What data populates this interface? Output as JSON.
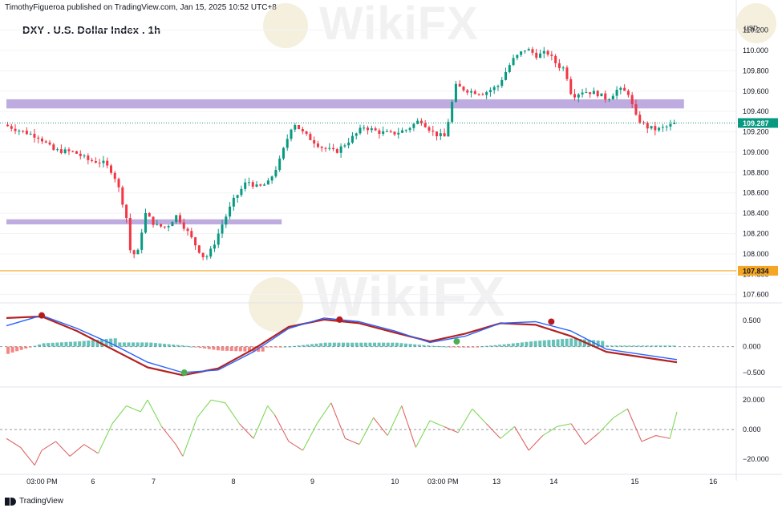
{
  "header": {
    "publisher": "TimothyFigueroa published on TradingView.com, Jan 15, 2025 10:52 UTC+8",
    "title": "DXY . U.S. Dollar Index . 1h"
  },
  "watermark": {
    "text": "WikiFX"
  },
  "footer": {
    "brand": "TradingView"
  },
  "colors": {
    "up": "#089981",
    "down": "#f23645",
    "zone": "#b39ddb",
    "support": "#f5a623",
    "last_price": "#089981",
    "fast_line": "#2962ff",
    "slow_line": "#b22222",
    "signal_up": "#4caf50",
    "signal_down": "#b71c1c",
    "osc_up": "#7ed957",
    "osc_down": "#e06666"
  },
  "chart_data": [
    {
      "type": "candlestick",
      "title": "DXY . U.S. Dollar Index . 1h",
      "currency_label": "USD",
      "yticks": [
        107.6,
        107.8,
        108.0,
        108.2,
        108.4,
        108.6,
        108.8,
        109.0,
        109.2,
        109.4,
        109.6,
        109.8,
        110.0,
        110.2
      ],
      "ytick_labels": [
        "107.600",
        "107.800",
        "108.000",
        "108.200",
        "108.400",
        "108.600",
        "108.800",
        "109.000",
        "109.200",
        "109.400",
        "109.600",
        "109.800",
        "110.000",
        "110.200"
      ],
      "ylim": [
        107.55,
        110.37
      ],
      "last_price": 109.287,
      "last_price_label": "109.287",
      "support_level": 107.834,
      "support_label": "107.834",
      "zones": [
        {
          "low": 109.43,
          "high": 109.52,
          "from": 0,
          "to": 0.96
        },
        {
          "low": 108.29,
          "high": 108.34,
          "from": 0,
          "to": 0.39
        }
      ],
      "xtick_labels": [
        "03:00 PM",
        "6",
        "7",
        "8",
        "9",
        "10",
        "03:00 PM",
        "13",
        "14",
        "15",
        "16"
      ],
      "xtick_positions": [
        0.049,
        0.122,
        0.208,
        0.321,
        0.433,
        0.547,
        0.617,
        0.691,
        0.772,
        0.887,
        0.998
      ],
      "path": [
        [
          0,
          109.27
        ],
        [
          0.02,
          109.22
        ],
        [
          0.05,
          109.15
        ],
        [
          0.07,
          109.02
        ],
        [
          0.1,
          109.0
        ],
        [
          0.12,
          108.92
        ],
        [
          0.14,
          108.9
        ],
        [
          0.155,
          108.8
        ],
        [
          0.165,
          108.6
        ],
        [
          0.175,
          108.32
        ],
        [
          0.18,
          107.98
        ],
        [
          0.19,
          108.02
        ],
        [
          0.2,
          108.4
        ],
        [
          0.215,
          108.28
        ],
        [
          0.23,
          108.26
        ],
        [
          0.245,
          108.38
        ],
        [
          0.26,
          108.22
        ],
        [
          0.275,
          108.05
        ],
        [
          0.285,
          107.95
        ],
        [
          0.295,
          108.05
        ],
        [
          0.31,
          108.3
        ],
        [
          0.325,
          108.52
        ],
        [
          0.345,
          108.72
        ],
        [
          0.36,
          108.65
        ],
        [
          0.375,
          108.7
        ],
        [
          0.39,
          108.9
        ],
        [
          0.41,
          109.3
        ],
        [
          0.425,
          109.18
        ],
        [
          0.45,
          109.05
        ],
        [
          0.47,
          109.0
        ],
        [
          0.49,
          109.12
        ],
        [
          0.51,
          109.25
        ],
        [
          0.53,
          109.2
        ],
        [
          0.55,
          109.18
        ],
        [
          0.57,
          109.22
        ],
        [
          0.59,
          109.32
        ],
        [
          0.61,
          109.18
        ],
        [
          0.625,
          109.15
        ],
        [
          0.64,
          109.65
        ],
        [
          0.66,
          109.6
        ],
        [
          0.68,
          109.58
        ],
        [
          0.7,
          109.65
        ],
        [
          0.72,
          109.9
        ],
        [
          0.74,
          110.02
        ],
        [
          0.755,
          109.95
        ],
        [
          0.77,
          109.98
        ],
        [
          0.785,
          109.85
        ],
        [
          0.795,
          109.82
        ],
        [
          0.805,
          109.55
        ],
        [
          0.82,
          109.6
        ],
        [
          0.84,
          109.58
        ],
        [
          0.855,
          109.52
        ],
        [
          0.87,
          109.62
        ],
        [
          0.885,
          109.58
        ],
        [
          0.895,
          109.35
        ],
        [
          0.91,
          109.25
        ],
        [
          0.925,
          109.22
        ],
        [
          0.94,
          109.25
        ],
        [
          0.95,
          109.28
        ]
      ]
    },
    {
      "type": "line",
      "title": "",
      "yticks": [
        0.5,
        0.0,
        -0.5
      ],
      "ytick_labels": [
        "0.500",
        "0.000",
        "−0.500"
      ],
      "ylim": [
        -0.7,
        0.78
      ],
      "lines": [
        {
          "role": "fast",
          "x": [
            0,
            0.05,
            0.1,
            0.15,
            0.2,
            0.25,
            0.3,
            0.35,
            0.4,
            0.45,
            0.5,
            0.55,
            0.6,
            0.65,
            0.7,
            0.75,
            0.8,
            0.85,
            0.9,
            0.95
          ],
          "y": [
            0.4,
            0.6,
            0.35,
            0.05,
            -0.3,
            -0.5,
            -0.45,
            -0.1,
            0.35,
            0.55,
            0.48,
            0.3,
            0.08,
            0.2,
            0.45,
            0.48,
            0.3,
            -0.05,
            -0.15,
            -0.25
          ]
        },
        {
          "role": "slow",
          "x": [
            0,
            0.05,
            0.1,
            0.15,
            0.2,
            0.25,
            0.3,
            0.35,
            0.4,
            0.45,
            0.5,
            0.55,
            0.6,
            0.65,
            0.7,
            0.75,
            0.8,
            0.85,
            0.9,
            0.95
          ],
          "y": [
            0.55,
            0.58,
            0.3,
            -0.05,
            -0.4,
            -0.55,
            -0.42,
            -0.05,
            0.38,
            0.52,
            0.45,
            0.27,
            0.1,
            0.25,
            0.45,
            0.42,
            0.2,
            -0.1,
            -0.2,
            -0.3
          ]
        }
      ],
      "signals": [
        {
          "x": 0.05,
          "y": 0.6,
          "dir": "down"
        },
        {
          "x": 0.252,
          "y": -0.5,
          "dir": "up"
        },
        {
          "x": 0.472,
          "y": 0.52,
          "dir": "down"
        },
        {
          "x": 0.638,
          "y": 0.1,
          "dir": "up"
        },
        {
          "x": 0.772,
          "y": 0.48,
          "dir": "down"
        }
      ]
    },
    {
      "type": "line",
      "title": "",
      "yticks": [
        20,
        0,
        -20
      ],
      "ytick_labels": [
        "20.000",
        "0.000",
        "−20.000"
      ],
      "ylim": [
        -28,
        26
      ],
      "x": [
        0,
        0.02,
        0.04,
        0.05,
        0.07,
        0.09,
        0.11,
        0.13,
        0.15,
        0.17,
        0.19,
        0.2,
        0.22,
        0.24,
        0.25,
        0.27,
        0.29,
        0.31,
        0.33,
        0.35,
        0.37,
        0.38,
        0.4,
        0.42,
        0.44,
        0.46,
        0.48,
        0.5,
        0.52,
        0.54,
        0.56,
        0.58,
        0.6,
        0.62,
        0.64,
        0.66,
        0.68,
        0.7,
        0.72,
        0.74,
        0.76,
        0.78,
        0.8,
        0.82,
        0.84,
        0.86,
        0.88,
        0.9,
        0.92,
        0.94,
        0.95
      ],
      "y": [
        -6,
        -12,
        -24,
        -14,
        -8,
        -18,
        -10,
        -16,
        4,
        16,
        12,
        20,
        2,
        -10,
        -18,
        8,
        20,
        18,
        4,
        -6,
        16,
        10,
        -8,
        -14,
        4,
        18,
        -6,
        -10,
        8,
        -4,
        16,
        -12,
        6,
        2,
        -2,
        14,
        4,
        -6,
        2,
        -14,
        -4,
        2,
        4,
        -10,
        -2,
        8,
        14,
        -8,
        -4,
        -6,
        12
      ]
    }
  ]
}
